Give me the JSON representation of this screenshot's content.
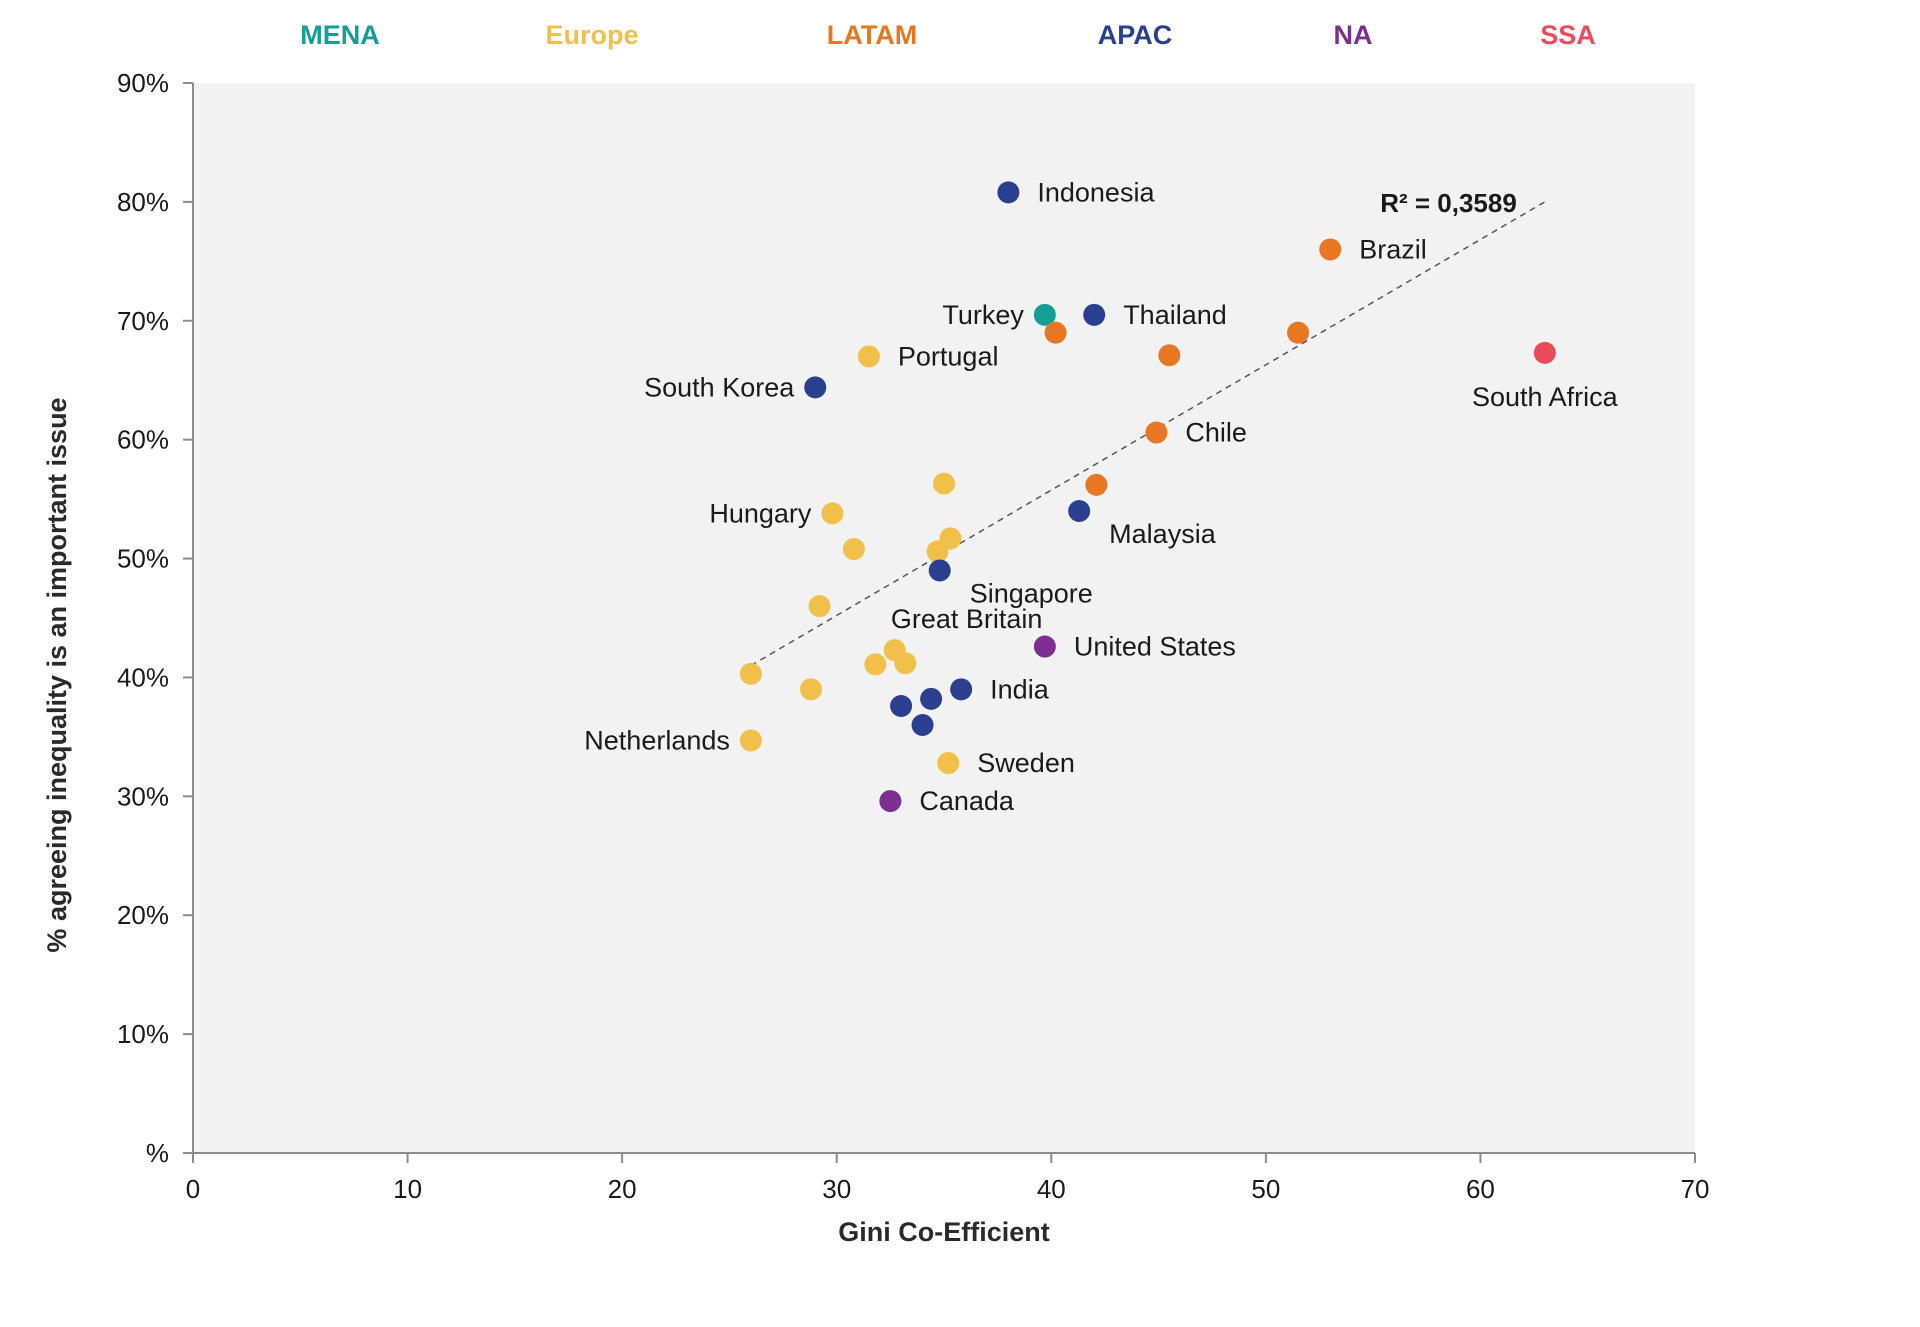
{
  "chart_data": {
    "type": "scatter",
    "title": "",
    "xlabel": "Gini Co-Efficient",
    "ylabel": "% agreeing inequality is an important issue",
    "xlim": [
      0,
      70
    ],
    "ylim": [
      0,
      90
    ],
    "x_ticks": [
      0,
      10,
      20,
      30,
      40,
      50,
      60,
      70
    ],
    "y_ticks": [
      {
        "value": 0,
        "label": "%"
      },
      {
        "value": 10,
        "label": "10%"
      },
      {
        "value": 20,
        "label": "20%"
      },
      {
        "value": 30,
        "label": "30%"
      },
      {
        "value": 40,
        "label": "40%"
      },
      {
        "value": 50,
        "label": "50%"
      },
      {
        "value": 60,
        "label": "60%"
      },
      {
        "value": 70,
        "label": "70%"
      },
      {
        "value": 80,
        "label": "80%"
      },
      {
        "value": 90,
        "label": "90%"
      }
    ],
    "grid": false,
    "plot_background": "#f2f2f2",
    "legend": {
      "placement": "top",
      "entries": [
        {
          "name": "MENA",
          "color": "#139e96"
        },
        {
          "name": "Europe",
          "color": "#f0c04a"
        },
        {
          "name": "LATAM",
          "color": "#e87722"
        },
        {
          "name": "APAC",
          "color": "#2b3f91"
        },
        {
          "name": "NA",
          "color": "#7d2e91"
        },
        {
          "name": "SSA",
          "color": "#ec4a5d"
        }
      ]
    },
    "trendline": {
      "style": "dashed",
      "x": [
        26,
        63
      ],
      "y": [
        41,
        80
      ],
      "label": "R² = 0,3589"
    },
    "series": [
      {
        "name": "MENA",
        "color": "#139e96",
        "points": [
          {
            "x": 39.7,
            "y": 70.5,
            "label": "Turkey",
            "label_side": "left"
          }
        ]
      },
      {
        "name": "Europe",
        "color": "#f0c04a",
        "points": [
          {
            "x": 31.5,
            "y": 67.0,
            "label": "Portugal",
            "label_side": "right"
          },
          {
            "x": 29.8,
            "y": 53.8,
            "label": "Hungary",
            "label_side": "left"
          },
          {
            "x": 35.0,
            "y": 56.3,
            "label": ""
          },
          {
            "x": 30.8,
            "y": 50.8,
            "label": ""
          },
          {
            "x": 34.7,
            "y": 50.6,
            "label": ""
          },
          {
            "x": 35.3,
            "y": 51.7,
            "label": ""
          },
          {
            "x": 29.2,
            "y": 46.0,
            "label": ""
          },
          {
            "x": 32.7,
            "y": 42.3,
            "label": "Great Britain",
            "label_side": "above"
          },
          {
            "x": 31.8,
            "y": 41.1,
            "label": ""
          },
          {
            "x": 33.2,
            "y": 41.2,
            "label": ""
          },
          {
            "x": 26.0,
            "y": 40.3,
            "label": ""
          },
          {
            "x": 28.8,
            "y": 39.0,
            "label": ""
          },
          {
            "x": 26.0,
            "y": 34.7,
            "label": "Netherlands",
            "label_side": "left"
          },
          {
            "x": 35.2,
            "y": 32.8,
            "label": "Sweden",
            "label_side": "right"
          }
        ]
      },
      {
        "name": "LATAM",
        "color": "#e87722",
        "points": [
          {
            "x": 53.0,
            "y": 76.0,
            "label": "Brazil",
            "label_side": "right"
          },
          {
            "x": 40.2,
            "y": 69.0,
            "label": ""
          },
          {
            "x": 45.5,
            "y": 67.1,
            "label": ""
          },
          {
            "x": 51.5,
            "y": 69.0,
            "label": ""
          },
          {
            "x": 44.9,
            "y": 60.6,
            "label": "Chile",
            "label_side": "right"
          },
          {
            "x": 42.1,
            "y": 56.2,
            "label": ""
          }
        ]
      },
      {
        "name": "APAC",
        "color": "#2b3f91",
        "points": [
          {
            "x": 38.0,
            "y": 80.8,
            "label": "Indonesia",
            "label_side": "right"
          },
          {
            "x": 42.0,
            "y": 70.5,
            "label": "Thailand",
            "label_side": "right"
          },
          {
            "x": 29.0,
            "y": 64.4,
            "label": "South Korea",
            "label_side": "left"
          },
          {
            "x": 41.3,
            "y": 54.0,
            "label": "Malaysia",
            "label_side": "right-below"
          },
          {
            "x": 34.8,
            "y": 49.0,
            "label": "Singapore",
            "label_side": "right-below"
          },
          {
            "x": 35.8,
            "y": 39.0,
            "label": "India",
            "label_side": "right"
          },
          {
            "x": 34.4,
            "y": 38.2,
            "label": ""
          },
          {
            "x": 33.0,
            "y": 37.6,
            "label": ""
          },
          {
            "x": 34.0,
            "y": 36.0,
            "label": ""
          }
        ]
      },
      {
        "name": "NA",
        "color": "#7d2e91",
        "points": [
          {
            "x": 39.7,
            "y": 42.6,
            "label": "United States",
            "label_side": "right"
          },
          {
            "x": 32.5,
            "y": 29.6,
            "label": "Canada",
            "label_side": "right"
          }
        ]
      },
      {
        "name": "SSA",
        "color": "#ec4a5d",
        "points": [
          {
            "x": 63.0,
            "y": 67.3,
            "label": "South Africa",
            "label_side": "below"
          }
        ]
      }
    ]
  }
}
